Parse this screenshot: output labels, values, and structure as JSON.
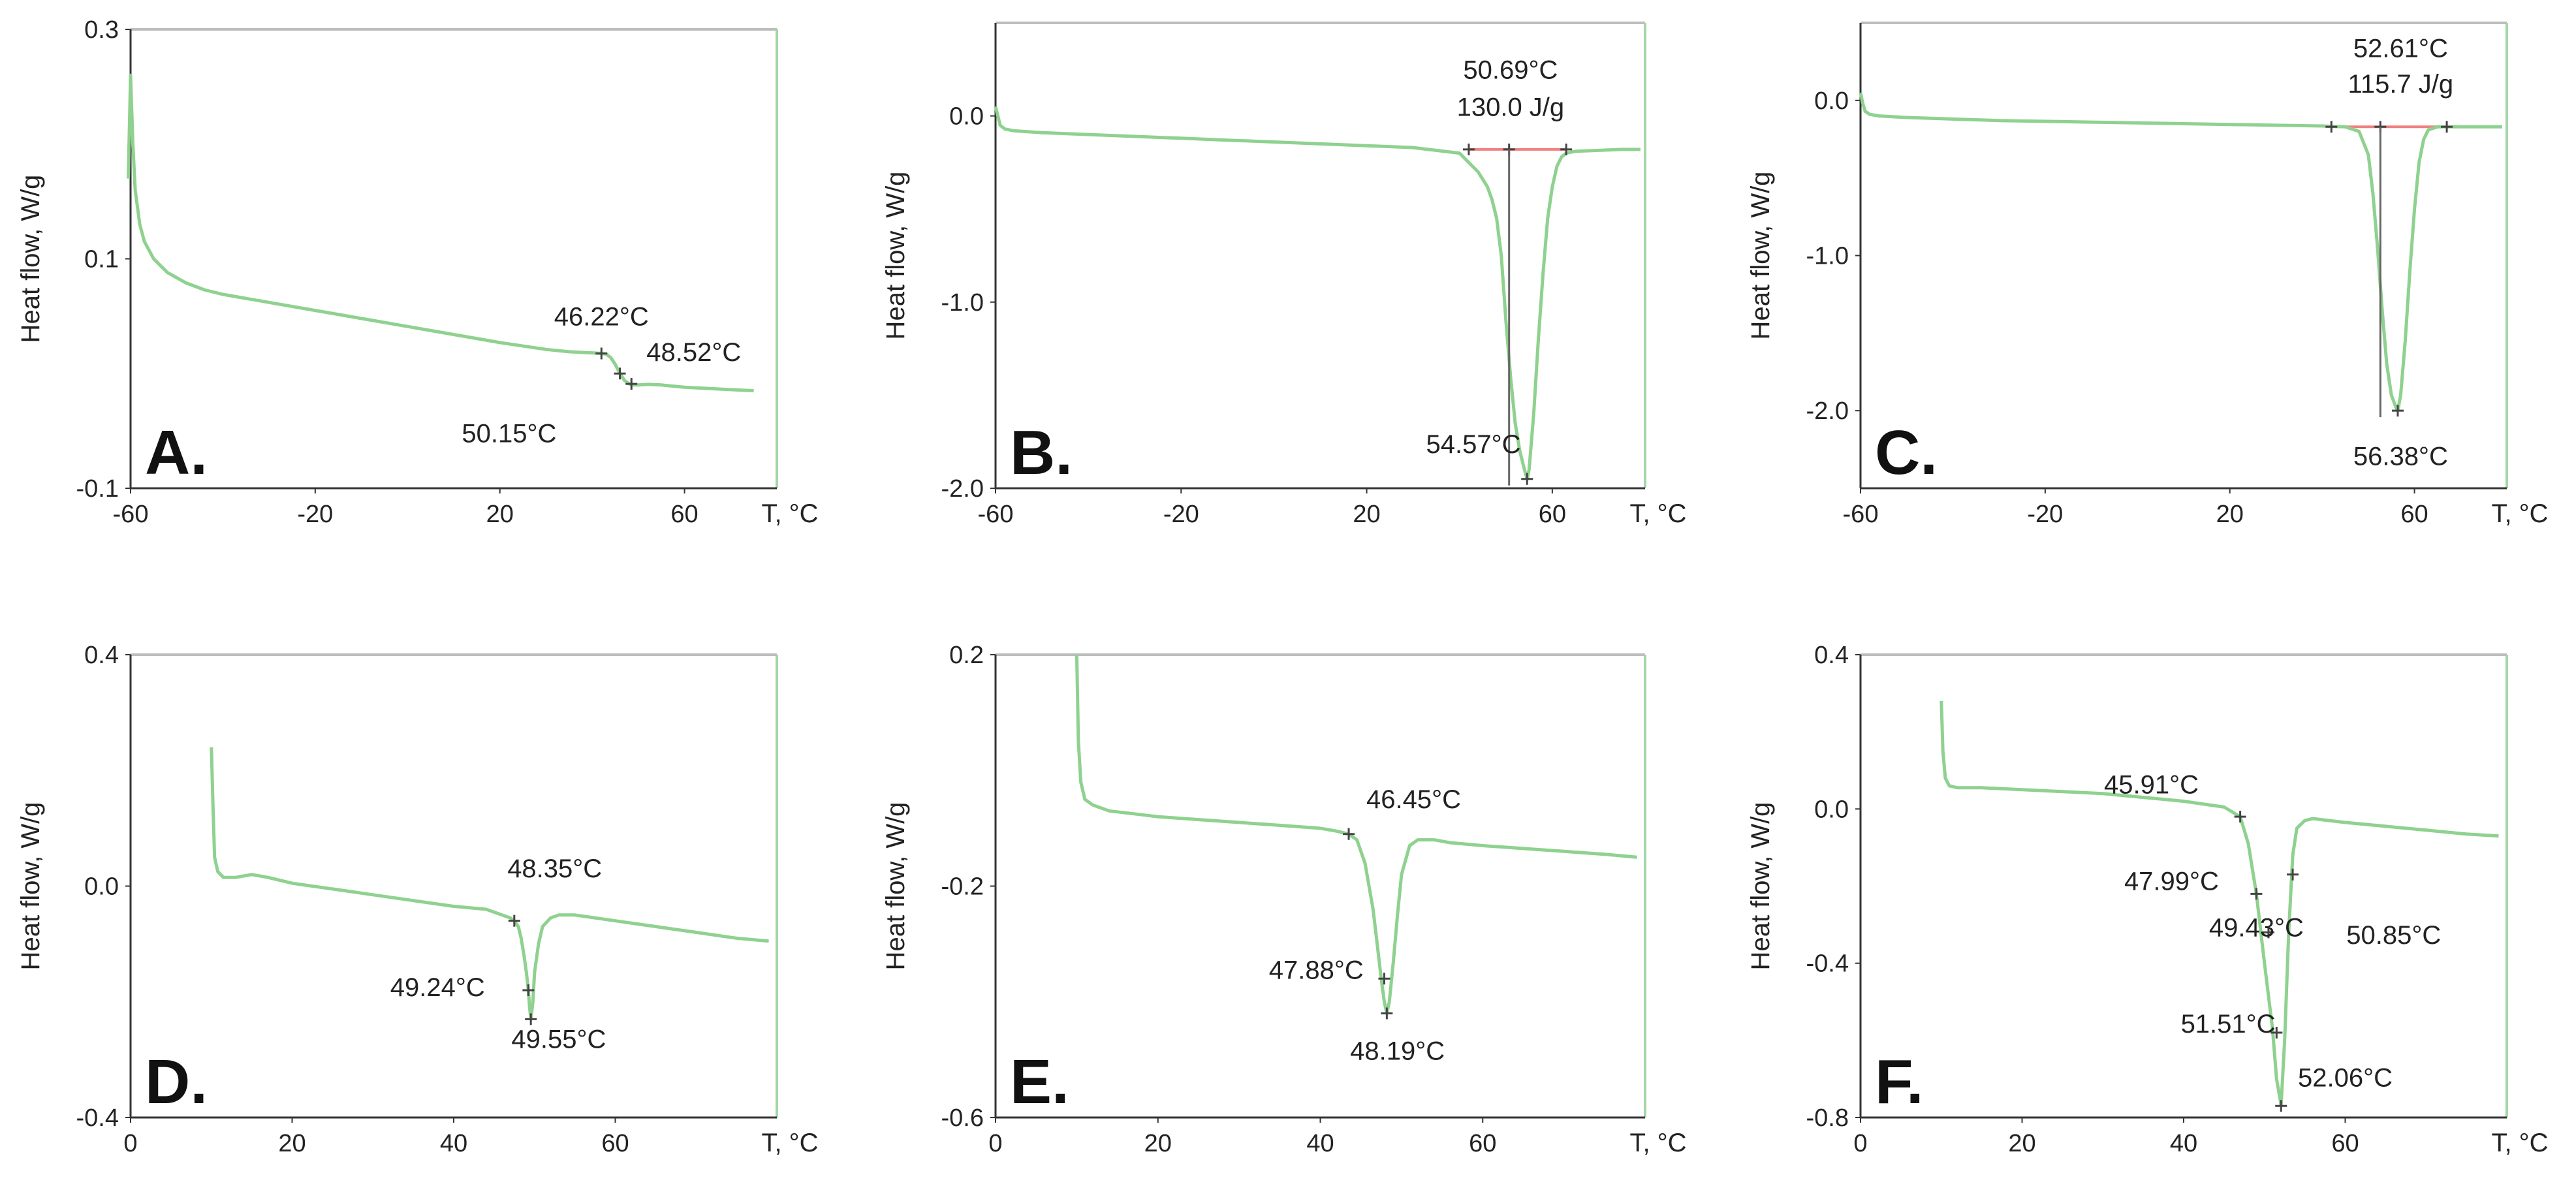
{
  "chart_data": [
    {
      "type": "line",
      "panel_letter": "A.",
      "xlabel": "T, °C",
      "ylabel": "Heat flow, W/g",
      "xlim": [
        -60,
        80
      ],
      "ylim": [
        -0.1,
        0.3
      ],
      "xticks": [
        "-60",
        "-20",
        "20",
        "60"
      ],
      "xtick_values": [
        -60,
        -20,
        20,
        60
      ],
      "yticks": [
        "0.3",
        "0.1",
        "-0.1"
      ],
      "ytick_values": [
        0.3,
        0.1,
        -0.1
      ],
      "colors": {
        "curve": "#8fd18f",
        "baseline": "#f08080",
        "marker": "#444444"
      },
      "series": [
        {
          "x": [
            -60.5,
            -60,
            -59.5,
            -59,
            -58,
            -57,
            -55,
            -52,
            -48,
            -44,
            -40,
            -30,
            -20,
            -10,
            0,
            10,
            20,
            30,
            35,
            40,
            42,
            43,
            44,
            45,
            46,
            47,
            48,
            49,
            50,
            52,
            55,
            60,
            65,
            70,
            75
          ],
          "y": [
            0.17,
            0.26,
            0.2,
            0.16,
            0.13,
            0.115,
            0.1,
            0.088,
            0.079,
            0.073,
            0.069,
            0.062,
            0.055,
            0.048,
            0.041,
            0.034,
            0.027,
            0.021,
            0.019,
            0.018,
            0.0175,
            0.017,
            0.014,
            0.008,
            0.0,
            -0.006,
            -0.009,
            -0.01,
            -0.01,
            -0.0095,
            -0.01,
            -0.012,
            -0.013,
            -0.014,
            -0.015
          ]
        }
      ],
      "markers": [
        {
          "x": 42,
          "y": 0.0175
        },
        {
          "x": 46,
          "y": 0.0
        },
        {
          "x": 48.5,
          "y": -0.009
        }
      ],
      "annotations": [
        {
          "text": "46.22°C",
          "x": 42,
          "y": 0.042
        },
        {
          "text": "48.52°C",
          "x": 62,
          "y": 0.011
        },
        {
          "text": "50.15°C",
          "x": 22,
          "y": -0.06
        }
      ]
    },
    {
      "type": "line",
      "panel_letter": "B.",
      "xlabel": "T, °C",
      "ylabel": "Heat flow, W/g",
      "xlim": [
        -60,
        80
      ],
      "ylim": [
        -2.0,
        0.5
      ],
      "xticks": [
        "-60",
        "-20",
        "20",
        "60"
      ],
      "xtick_values": [
        -60,
        -20,
        20,
        60
      ],
      "yticks": [
        "0.0",
        "-1.0",
        "-2.0"
      ],
      "yticks_values_note": "",
      "ytick_values": [
        0.0,
        -1.0,
        -2.0
      ],
      "colors": {
        "curve": "#8fd18f",
        "baseline": "#f08080",
        "marker": "#444444"
      },
      "series": [
        {
          "x": [
            -60,
            -59.5,
            -59,
            -58,
            -56,
            -50,
            -40,
            -30,
            -20,
            -10,
            0,
            10,
            20,
            30,
            40,
            44,
            46,
            47,
            48,
            49,
            50,
            51,
            52,
            53,
            54,
            54.57,
            55,
            56,
            57,
            58,
            59,
            60,
            61,
            62,
            63,
            65,
            70,
            75,
            79
          ],
          "y": [
            0.05,
            0.0,
            -0.05,
            -0.07,
            -0.08,
            -0.09,
            -0.1,
            -0.11,
            -0.12,
            -0.13,
            -0.14,
            -0.15,
            -0.16,
            -0.17,
            -0.2,
            -0.3,
            -0.38,
            -0.45,
            -0.55,
            -0.75,
            -1.1,
            -1.4,
            -1.65,
            -1.8,
            -1.9,
            -1.95,
            -1.9,
            -1.6,
            -1.2,
            -0.85,
            -0.55,
            -0.38,
            -0.27,
            -0.22,
            -0.2,
            -0.19,
            -0.185,
            -0.18,
            -0.18
          ]
        }
      ],
      "baseline": {
        "x": [
          42,
          63
        ],
        "y": [
          -0.18,
          -0.18
        ]
      },
      "markers": [
        {
          "x": 42,
          "y": -0.18
        },
        {
          "x": 50.69,
          "y": -0.18
        },
        {
          "x": 63,
          "y": -0.18
        },
        {
          "x": 54.57,
          "y": -1.95
        }
      ],
      "annotations": [
        {
          "text": "50.69°C",
          "x": 51,
          "y": 0.2
        },
        {
          "text": "130.0 J/g",
          "x": 51,
          "y": 0.0
        },
        {
          "text": "54.57°C",
          "x": 43,
          "y": -1.81
        }
      ]
    },
    {
      "type": "line",
      "panel_letter": "C.",
      "xlabel": "T, °C",
      "ylabel": "Heat flow, W/g",
      "xlim": [
        -60,
        80
      ],
      "ylim": [
        -2.5,
        0.5
      ],
      "xticks": [
        "-60",
        "-20",
        "20",
        "60"
      ],
      "xtick_values": [
        -60,
        -20,
        20,
        60
      ],
      "yticks": [
        "0.0",
        "-1.0",
        "-2.0"
      ],
      "ytick_values": [
        0.0,
        -1.0,
        -2.0
      ],
      "colors": {
        "curve": "#8fd18f",
        "baseline": "#f08080",
        "marker": "#444444"
      },
      "series": [
        {
          "x": [
            -60,
            -59.5,
            -59,
            -58,
            -56,
            -50,
            -40,
            -30,
            -20,
            -10,
            0,
            10,
            20,
            30,
            40,
            45,
            48,
            50,
            51,
            52,
            53,
            54,
            55,
            56,
            56.38,
            57,
            58,
            59,
            60,
            61,
            62,
            63,
            65,
            70,
            75,
            79
          ],
          "y": [
            0.05,
            -0.02,
            -0.07,
            -0.09,
            -0.1,
            -0.11,
            -0.12,
            -0.13,
            -0.135,
            -0.14,
            -0.145,
            -0.15,
            -0.155,
            -0.16,
            -0.165,
            -0.17,
            -0.2,
            -0.35,
            -0.6,
            -0.95,
            -1.35,
            -1.7,
            -1.9,
            -1.98,
            -2.0,
            -1.9,
            -1.55,
            -1.1,
            -0.7,
            -0.4,
            -0.25,
            -0.19,
            -0.17,
            -0.17,
            -0.17,
            -0.17
          ]
        }
      ],
      "baseline": {
        "x": [
          42,
          67
        ],
        "y": [
          -0.17,
          -0.17
        ]
      },
      "markers": [
        {
          "x": 42,
          "y": -0.17
        },
        {
          "x": 52.61,
          "y": -0.17
        },
        {
          "x": 67,
          "y": -0.17
        },
        {
          "x": 56.38,
          "y": -2.0
        }
      ],
      "annotations": [
        {
          "text": "52.61°C",
          "x": 57,
          "y": 0.28
        },
        {
          "text": "115.7 J/g",
          "x": 57,
          "y": 0.05
        },
        {
          "text": "56.38°C",
          "x": 57,
          "y": -2.35
        }
      ]
    },
    {
      "type": "line",
      "panel_letter": "D.",
      "xlabel": "T, °C",
      "ylabel": "Heat flow, W/g",
      "xlim": [
        0,
        80
      ],
      "ylim": [
        -0.4,
        0.4
      ],
      "xticks": [
        "0",
        "20",
        "40",
        "60"
      ],
      "xtick_values": [
        0,
        20,
        40,
        60
      ],
      "yticks": [
        "0.4",
        "0.0",
        "-0.4"
      ],
      "ytick_values": [
        0.4,
        0.0,
        -0.4
      ],
      "colors": {
        "curve": "#8fd18f",
        "baseline": "#f08080",
        "marker": "#444444"
      },
      "series": [
        {
          "x": [
            10,
            10.2,
            10.4,
            10.8,
            11.5,
            13,
            15,
            17,
            20,
            25,
            30,
            35,
            40,
            44,
            46,
            47,
            47.5,
            48,
            48.35,
            48.7,
            49,
            49.24,
            49.4,
            49.55,
            49.8,
            50,
            50.5,
            51,
            52,
            53,
            55,
            60,
            65,
            70,
            75,
            79
          ],
          "y": [
            0.24,
            0.14,
            0.05,
            0.025,
            0.015,
            0.015,
            0.02,
            0.015,
            0.005,
            -0.005,
            -0.015,
            -0.025,
            -0.035,
            -0.04,
            -0.05,
            -0.055,
            -0.06,
            -0.07,
            -0.09,
            -0.12,
            -0.15,
            -0.18,
            -0.21,
            -0.23,
            -0.2,
            -0.15,
            -0.1,
            -0.07,
            -0.055,
            -0.05,
            -0.05,
            -0.06,
            -0.07,
            -0.08,
            -0.09,
            -0.095
          ]
        }
      ],
      "markers": [
        {
          "x": 47.5,
          "y": -0.06
        },
        {
          "x": 49.24,
          "y": -0.18
        },
        {
          "x": 49.55,
          "y": -0.23
        }
      ],
      "annotations": [
        {
          "text": "48.35°C",
          "x": 52.5,
          "y": 0.015
        },
        {
          "text": "49.24°C",
          "x": 38,
          "y": -0.19
        },
        {
          "text": "49.55°C",
          "x": 53,
          "y": -0.28
        }
      ]
    },
    {
      "type": "line",
      "panel_letter": "E.",
      "xlabel": "T, °C",
      "ylabel": "Heat flow, W/g",
      "xlim": [
        0,
        80
      ],
      "ylim": [
        -0.6,
        0.2
      ],
      "xticks": [
        "0",
        "20",
        "40",
        "60"
      ],
      "xtick_values": [
        0,
        20,
        40,
        60
      ],
      "yticks": [
        "0.2",
        "-0.2",
        "-0.6"
      ],
      "ytick_values": [
        0.2,
        -0.2,
        -0.6
      ],
      "colors": {
        "curve": "#8fd18f",
        "baseline": "#f08080",
        "marker": "#444444"
      },
      "series": [
        {
          "x": [
            10,
            10.2,
            10.5,
            11,
            12,
            14,
            17,
            20,
            25,
            30,
            35,
            40,
            42,
            43.5,
            44.5,
            45.5,
            46.5,
            47,
            47.5,
            47.88,
            48.19,
            48.5,
            49,
            49.5,
            50,
            51,
            52,
            54,
            56,
            60,
            65,
            70,
            75,
            79
          ],
          "y": [
            0.2,
            0.05,
            -0.02,
            -0.05,
            -0.06,
            -0.07,
            -0.075,
            -0.08,
            -0.085,
            -0.09,
            -0.095,
            -0.1,
            -0.105,
            -0.11,
            -0.12,
            -0.16,
            -0.24,
            -0.3,
            -0.36,
            -0.4,
            -0.42,
            -0.4,
            -0.33,
            -0.25,
            -0.18,
            -0.13,
            -0.12,
            -0.12,
            -0.125,
            -0.13,
            -0.135,
            -0.14,
            -0.145,
            -0.15
          ]
        }
      ],
      "markers": [
        {
          "x": 43.5,
          "y": -0.11
        },
        {
          "x": 47.88,
          "y": -0.36
        },
        {
          "x": 48.19,
          "y": -0.42
        }
      ],
      "annotations": [
        {
          "text": "46.45°C",
          "x": 51.5,
          "y": -0.065
        },
        {
          "text": "47.88°C",
          "x": 39.5,
          "y": -0.36
        },
        {
          "text": "48.19°C",
          "x": 49.5,
          "y": -0.5
        }
      ]
    },
    {
      "type": "line",
      "panel_letter": "F.",
      "xlabel": "T, °C",
      "ylabel": "Heat flow, W/g",
      "xlim": [
        0,
        80
      ],
      "ylim": [
        -0.8,
        0.4
      ],
      "xticks": [
        "0",
        "20",
        "40",
        "60"
      ],
      "xtick_values": [
        0,
        20,
        40,
        60
      ],
      "yticks": [
        "0.4",
        "0.0",
        "-0.4",
        "-0.8"
      ],
      "ytick_values": [
        0.4,
        0.0,
        -0.4,
        -0.8
      ],
      "colors": {
        "curve": "#8fd18f",
        "baseline": "#f08080",
        "marker": "#444444"
      },
      "series": [
        {
          "x": [
            10,
            10.2,
            10.5,
            11,
            12,
            15,
            20,
            25,
            30,
            35,
            40,
            45,
            47,
            48,
            49,
            50,
            51,
            51.5,
            52,
            52.06,
            52.5,
            53,
            53.5,
            54,
            55,
            56,
            58,
            60,
            65,
            70,
            75,
            79
          ],
          "y": [
            0.28,
            0.15,
            0.08,
            0.06,
            0.055,
            0.055,
            0.05,
            0.045,
            0.04,
            0.03,
            0.02,
            0.005,
            -0.02,
            -0.09,
            -0.22,
            -0.4,
            -0.57,
            -0.7,
            -0.76,
            -0.77,
            -0.6,
            -0.32,
            -0.12,
            -0.05,
            -0.03,
            -0.025,
            -0.03,
            -0.035,
            -0.045,
            -0.055,
            -0.065,
            -0.07
          ]
        }
      ],
      "markers": [
        {
          "x": 47,
          "y": -0.02
        },
        {
          "x": 49,
          "y": -0.22
        },
        {
          "x": 50.5,
          "y": -0.32
        },
        {
          "x": 51.5,
          "y": -0.58
        },
        {
          "x": 53.5,
          "y": -0.17
        },
        {
          "x": 52.06,
          "y": -0.77
        }
      ],
      "annotations": [
        {
          "text": "45.91°C",
          "x": 36,
          "y": 0.04
        },
        {
          "text": "47.99°C",
          "x": 38.5,
          "y": -0.21
        },
        {
          "text": "49.43°C",
          "x": 49,
          "y": -0.33
        },
        {
          "text": "50.85°C",
          "x": 66,
          "y": -0.35
        },
        {
          "text": "51.51°C",
          "x": 45.5,
          "y": -0.58
        },
        {
          "text": "52.06°C",
          "x": 60,
          "y": -0.72
        }
      ]
    }
  ]
}
